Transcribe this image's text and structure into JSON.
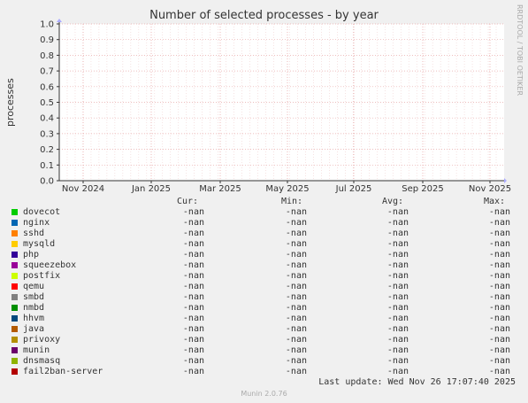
{
  "chart_data": {
    "type": "line",
    "title": "Number of selected processes - by year",
    "ylabel": "processes",
    "side_text": "RRDTOOL / TOBI OETIKER",
    "ylim": [
      0.0,
      1.0
    ],
    "yticks": [
      "0.0",
      "0.1",
      "0.2",
      "0.3",
      "0.4",
      "0.5",
      "0.6",
      "0.7",
      "0.8",
      "0.9",
      "1.0"
    ],
    "xticks": [
      "Nov 2024",
      "Jan 2025",
      "Mar 2025",
      "May 2025",
      "Jul 2025",
      "Sep 2025",
      "Nov 2025"
    ],
    "grid": true,
    "series": [
      {
        "name": "dovecot",
        "color": "#00cc00",
        "cur": "-nan",
        "min": "-nan",
        "avg": "-nan",
        "max": "-nan"
      },
      {
        "name": "nginx",
        "color": "#0066b3",
        "cur": "-nan",
        "min": "-nan",
        "avg": "-nan",
        "max": "-nan"
      },
      {
        "name": "sshd",
        "color": "#ff8000",
        "cur": "-nan",
        "min": "-nan",
        "avg": "-nan",
        "max": "-nan"
      },
      {
        "name": "mysqld",
        "color": "#ffcc00",
        "cur": "-nan",
        "min": "-nan",
        "avg": "-nan",
        "max": "-nan"
      },
      {
        "name": "php",
        "color": "#330099",
        "cur": "-nan",
        "min": "-nan",
        "avg": "-nan",
        "max": "-nan"
      },
      {
        "name": "squeezebox",
        "color": "#990099",
        "cur": "-nan",
        "min": "-nan",
        "avg": "-nan",
        "max": "-nan"
      },
      {
        "name": "postfix",
        "color": "#ccff00",
        "cur": "-nan",
        "min": "-nan",
        "avg": "-nan",
        "max": "-nan"
      },
      {
        "name": "qemu",
        "color": "#ff0000",
        "cur": "-nan",
        "min": "-nan",
        "avg": "-nan",
        "max": "-nan"
      },
      {
        "name": "smbd",
        "color": "#808080",
        "cur": "-nan",
        "min": "-nan",
        "avg": "-nan",
        "max": "-nan"
      },
      {
        "name": "nmbd",
        "color": "#008f00",
        "cur": "-nan",
        "min": "-nan",
        "avg": "-nan",
        "max": "-nan"
      },
      {
        "name": "hhvm",
        "color": "#00487d",
        "cur": "-nan",
        "min": "-nan",
        "avg": "-nan",
        "max": "-nan"
      },
      {
        "name": "java",
        "color": "#b35a00",
        "cur": "-nan",
        "min": "-nan",
        "avg": "-nan",
        "max": "-nan"
      },
      {
        "name": "privoxy",
        "color": "#b38f00",
        "cur": "-nan",
        "min": "-nan",
        "avg": "-nan",
        "max": "-nan"
      },
      {
        "name": "munin",
        "color": "#6b006b",
        "cur": "-nan",
        "min": "-nan",
        "avg": "-nan",
        "max": "-nan"
      },
      {
        "name": "dnsmasq",
        "color": "#8fb300",
        "cur": "-nan",
        "min": "-nan",
        "avg": "-nan",
        "max": "-nan"
      },
      {
        "name": "fail2ban-server",
        "color": "#b30000",
        "cur": "-nan",
        "min": "-nan",
        "avg": "-nan",
        "max": "-nan"
      }
    ]
  },
  "legend": {
    "cur_label": "Cur:",
    "min_label": "Min:",
    "avg_label": "Avg:",
    "max_label": "Max:"
  },
  "last_update": "Last update: Wed Nov 26 17:07:40 2025",
  "footer": "Munin 2.0.76"
}
